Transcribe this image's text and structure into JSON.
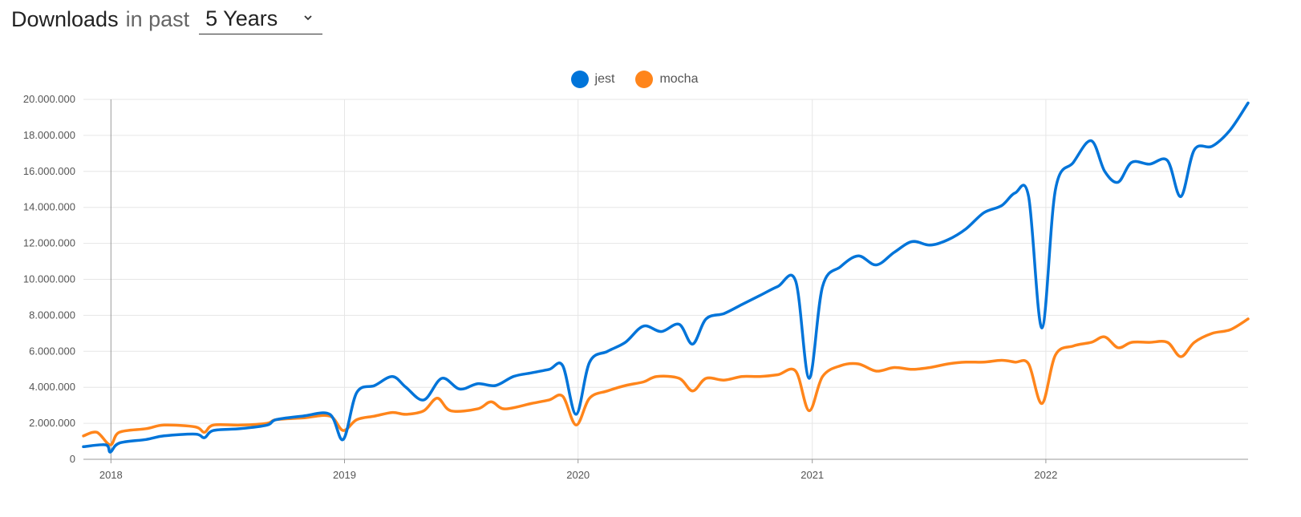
{
  "header": {
    "title": "Downloads",
    "subtitle": "in past",
    "range_value": "5 Years"
  },
  "chart_data": {
    "type": "line",
    "x_axis": {
      "type": "date",
      "range": [
        "2017-11-19",
        "2022-11-13"
      ],
      "ticks": [
        "2018",
        "2019",
        "2020",
        "2021",
        "2022"
      ]
    },
    "y_axis": {
      "range": [
        0,
        20000000
      ],
      "ticks": [
        "0",
        "2.000.000",
        "4.000.000",
        "6.000.000",
        "8.000.000",
        "10.000.000",
        "12.000.000",
        "14.000.000",
        "16.000.000",
        "18.000.000",
        "20.000.000"
      ]
    },
    "grid": true,
    "legend_position": "top-center",
    "series": [
      {
        "name": "jest",
        "color": "#0074d9",
        "points": [
          [
            "2017-11-19",
            700000
          ],
          [
            "2017-12-24",
            800000
          ],
          [
            "2017-12-31",
            400000
          ],
          [
            "2018-01-14",
            900000
          ],
          [
            "2018-02-25",
            1100000
          ],
          [
            "2018-03-25",
            1300000
          ],
          [
            "2018-05-13",
            1400000
          ],
          [
            "2018-05-27",
            1200000
          ],
          [
            "2018-06-10",
            1600000
          ],
          [
            "2018-07-22",
            1700000
          ],
          [
            "2018-09-02",
            1900000
          ],
          [
            "2018-09-16",
            2200000
          ],
          [
            "2018-10-28",
            2400000
          ],
          [
            "2018-12-09",
            2500000
          ],
          [
            "2018-12-30",
            1100000
          ],
          [
            "2019-01-20",
            3700000
          ],
          [
            "2019-02-17",
            4100000
          ],
          [
            "2019-03-17",
            4600000
          ],
          [
            "2019-04-07",
            4000000
          ],
          [
            "2019-05-05",
            3300000
          ],
          [
            "2019-06-02",
            4500000
          ],
          [
            "2019-06-30",
            3900000
          ],
          [
            "2019-07-28",
            4200000
          ],
          [
            "2019-08-25",
            4100000
          ],
          [
            "2019-09-22",
            4600000
          ],
          [
            "2019-10-20",
            4800000
          ],
          [
            "2019-11-17",
            5000000
          ],
          [
            "2019-12-08",
            5200000
          ],
          [
            "2019-12-29",
            2500000
          ],
          [
            "2020-01-19",
            5400000
          ],
          [
            "2020-02-16",
            6000000
          ],
          [
            "2020-03-15",
            6500000
          ],
          [
            "2020-04-12",
            7400000
          ],
          [
            "2020-05-10",
            7100000
          ],
          [
            "2020-06-07",
            7500000
          ],
          [
            "2020-06-28",
            6400000
          ],
          [
            "2020-07-19",
            7800000
          ],
          [
            "2020-08-16",
            8100000
          ],
          [
            "2020-09-13",
            8600000
          ],
          [
            "2020-10-11",
            9100000
          ],
          [
            "2020-11-08",
            9600000
          ],
          [
            "2020-12-06",
            9900000
          ],
          [
            "2020-12-27",
            4500000
          ],
          [
            "2021-01-17",
            9600000
          ],
          [
            "2021-02-14",
            10700000
          ],
          [
            "2021-03-14",
            11300000
          ],
          [
            "2021-04-11",
            10800000
          ],
          [
            "2021-05-09",
            11500000
          ],
          [
            "2021-06-06",
            12100000
          ],
          [
            "2021-07-04",
            11900000
          ],
          [
            "2021-08-01",
            12200000
          ],
          [
            "2021-08-29",
            12800000
          ],
          [
            "2021-09-26",
            13700000
          ],
          [
            "2021-10-24",
            14100000
          ],
          [
            "2021-11-14",
            14800000
          ],
          [
            "2021-12-05",
            14600000
          ],
          [
            "2021-12-26",
            7300000
          ],
          [
            "2022-01-16",
            15000000
          ],
          [
            "2022-02-13",
            16500000
          ],
          [
            "2022-03-13",
            17700000
          ],
          [
            "2022-04-03",
            16000000
          ],
          [
            "2022-04-24",
            15400000
          ],
          [
            "2022-05-15",
            16500000
          ],
          [
            "2022-06-12",
            16400000
          ],
          [
            "2022-07-10",
            16600000
          ],
          [
            "2022-07-31",
            14600000
          ],
          [
            "2022-08-21",
            17200000
          ],
          [
            "2022-09-18",
            17400000
          ],
          [
            "2022-10-16",
            18300000
          ],
          [
            "2022-11-13",
            19800000
          ]
        ]
      },
      {
        "name": "mocha",
        "color": "#ff851b",
        "points": [
          [
            "2017-11-19",
            1300000
          ],
          [
            "2017-12-10",
            1500000
          ],
          [
            "2017-12-31",
            800000
          ],
          [
            "2018-01-14",
            1500000
          ],
          [
            "2018-02-25",
            1700000
          ],
          [
            "2018-03-25",
            1900000
          ],
          [
            "2018-05-13",
            1800000
          ],
          [
            "2018-05-27",
            1500000
          ],
          [
            "2018-06-10",
            1900000
          ],
          [
            "2018-07-22",
            1900000
          ],
          [
            "2018-09-02",
            2000000
          ],
          [
            "2018-09-16",
            2200000
          ],
          [
            "2018-10-28",
            2300000
          ],
          [
            "2018-12-09",
            2400000
          ],
          [
            "2018-12-30",
            1600000
          ],
          [
            "2019-01-20",
            2200000
          ],
          [
            "2019-02-17",
            2400000
          ],
          [
            "2019-03-17",
            2600000
          ],
          [
            "2019-04-07",
            2500000
          ],
          [
            "2019-05-05",
            2700000
          ],
          [
            "2019-05-26",
            3400000
          ],
          [
            "2019-06-16",
            2700000
          ],
          [
            "2019-07-28",
            2800000
          ],
          [
            "2019-08-18",
            3200000
          ],
          [
            "2019-09-08",
            2800000
          ],
          [
            "2019-10-20",
            3100000
          ],
          [
            "2019-11-17",
            3300000
          ],
          [
            "2019-12-08",
            3500000
          ],
          [
            "2019-12-29",
            1900000
          ],
          [
            "2020-01-19",
            3400000
          ],
          [
            "2020-02-16",
            3800000
          ],
          [
            "2020-03-15",
            4100000
          ],
          [
            "2020-04-12",
            4300000
          ],
          [
            "2020-05-03",
            4600000
          ],
          [
            "2020-06-07",
            4500000
          ],
          [
            "2020-06-28",
            3800000
          ],
          [
            "2020-07-19",
            4500000
          ],
          [
            "2020-08-16",
            4400000
          ],
          [
            "2020-09-13",
            4600000
          ],
          [
            "2020-10-11",
            4600000
          ],
          [
            "2020-11-08",
            4700000
          ],
          [
            "2020-12-06",
            4900000
          ],
          [
            "2020-12-27",
            2700000
          ],
          [
            "2021-01-17",
            4600000
          ],
          [
            "2021-02-14",
            5200000
          ],
          [
            "2021-03-14",
            5300000
          ],
          [
            "2021-04-11",
            4900000
          ],
          [
            "2021-05-09",
            5100000
          ],
          [
            "2021-06-06",
            5000000
          ],
          [
            "2021-07-04",
            5100000
          ],
          [
            "2021-08-01",
            5300000
          ],
          [
            "2021-08-29",
            5400000
          ],
          [
            "2021-09-26",
            5400000
          ],
          [
            "2021-10-24",
            5500000
          ],
          [
            "2021-11-14",
            5400000
          ],
          [
            "2021-12-05",
            5300000
          ],
          [
            "2021-12-26",
            3100000
          ],
          [
            "2022-01-16",
            5800000
          ],
          [
            "2022-02-13",
            6300000
          ],
          [
            "2022-03-13",
            6500000
          ],
          [
            "2022-04-03",
            6800000
          ],
          [
            "2022-04-24",
            6200000
          ],
          [
            "2022-05-15",
            6500000
          ],
          [
            "2022-06-12",
            6500000
          ],
          [
            "2022-07-10",
            6500000
          ],
          [
            "2022-07-31",
            5700000
          ],
          [
            "2022-08-21",
            6500000
          ],
          [
            "2022-09-18",
            7000000
          ],
          [
            "2022-10-16",
            7200000
          ],
          [
            "2022-11-13",
            7800000
          ]
        ]
      }
    ]
  }
}
